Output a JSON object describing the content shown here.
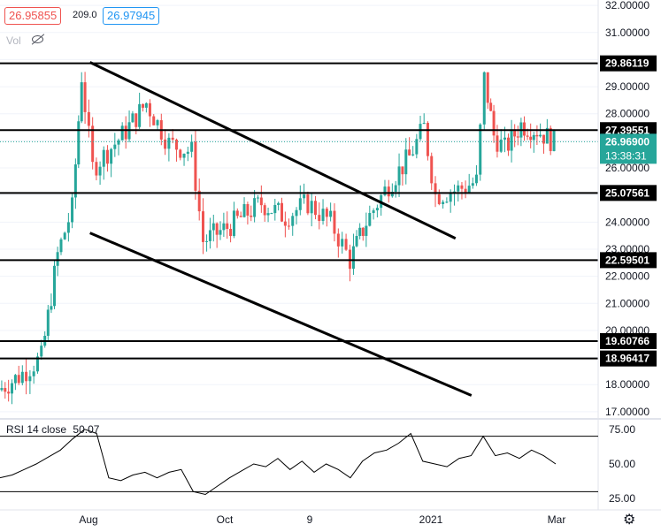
{
  "header": {
    "bid": "26.95855",
    "spread": "209.0",
    "ask": "26.97945",
    "vol_label": "Vol"
  },
  "colors": {
    "up": "#26a69a",
    "down": "#ef5350",
    "line": "#000000",
    "current": "#26a69a",
    "grid": "#f0f3fa"
  },
  "chart_data": {
    "type": "candlestick",
    "y_ticks": [
      "17.00000",
      "18.00000",
      "19.00000",
      "20.00000",
      "21.00000",
      "22.00000",
      "23.00000",
      "24.00000",
      "25.00000",
      "26.00000",
      "27.00000",
      "28.00000",
      "29.00000",
      "30.00000",
      "31.00000",
      "32.00000"
    ],
    "ylim": [
      16.8,
      32.2
    ],
    "x_ticks": [
      "Aug",
      "Oct",
      "9",
      "2021",
      "Mar"
    ],
    "price_levels": [
      "29.86119",
      "27.39551",
      "25.07561",
      "22.59501",
      "19.60766",
      "18.96417"
    ],
    "current_price": "26.96900",
    "countdown": "13:38:31",
    "trendlines": [
      {
        "from": [
          "Aug 10",
          29.9
        ],
        "to": [
          "Jan 18",
          23.4
        ]
      },
      {
        "from": [
          "Aug 10",
          23.6
        ],
        "to": [
          "Jan 25",
          17.6
        ]
      }
    ],
    "candles_approx": [
      {
        "x": "Jul 01",
        "y": 17.8
      },
      {
        "x": "Jul 10",
        "y": 18.3
      },
      {
        "x": "Jul 20",
        "y": 19.0
      },
      {
        "x": "Jul 27",
        "y": 22.8
      },
      {
        "x": "Aug 03",
        "y": 24.5
      },
      {
        "x": "Aug 07",
        "y": 29.4
      },
      {
        "x": "Aug 12",
        "y": 26.0
      },
      {
        "x": "Aug 25",
        "y": 27.2
      },
      {
        "x": "Sep 05",
        "y": 28.4
      },
      {
        "x": "Sep 15",
        "y": 26.9
      },
      {
        "x": "Sep 25",
        "y": 26.6
      },
      {
        "x": "Sep 30",
        "y": 23.3
      },
      {
        "x": "Oct 10",
        "y": 23.8
      },
      {
        "x": "Oct 25",
        "y": 24.7
      },
      {
        "x": "Nov 05",
        "y": 24.2
      },
      {
        "x": "Nov 15",
        "y": 24.7
      },
      {
        "x": "Nov 25",
        "y": 24.0
      },
      {
        "x": "Dec 03",
        "y": 22.6
      },
      {
        "x": "Dec 10",
        "y": 24.0
      },
      {
        "x": "Dec 20",
        "y": 25.4
      },
      {
        "x": "Dec 29",
        "y": 26.4
      },
      {
        "x": "Jan 05",
        "y": 27.5
      },
      {
        "x": "Jan 10",
        "y": 25.0
      },
      {
        "x": "Jan 20",
        "y": 25.2
      },
      {
        "x": "Jan 28",
        "y": 25.5
      },
      {
        "x": "Feb 01",
        "y": 29.3
      },
      {
        "x": "Feb 05",
        "y": 27.2
      },
      {
        "x": "Feb 10",
        "y": 26.7
      },
      {
        "x": "Feb 17",
        "y": 27.6
      },
      {
        "x": "Feb 24",
        "y": 27.4
      },
      {
        "x": "Mar 01",
        "y": 26.97
      }
    ],
    "rsi": {
      "label": "RSI 14 close",
      "value": "50.07",
      "ticks": [
        "25.00",
        "50.00",
        "75.00"
      ],
      "levels": [
        70,
        30
      ],
      "approx_series": [
        40,
        42,
        46,
        50,
        55,
        60,
        68,
        75,
        72,
        40,
        38,
        42,
        44,
        40,
        44,
        46,
        30,
        28,
        34,
        40,
        45,
        50,
        48,
        54,
        46,
        52,
        44,
        50,
        46,
        40,
        52,
        58,
        60,
        65,
        72,
        52,
        50,
        48,
        54,
        56,
        70,
        56,
        58,
        54,
        60,
        56,
        50
      ]
    }
  }
}
